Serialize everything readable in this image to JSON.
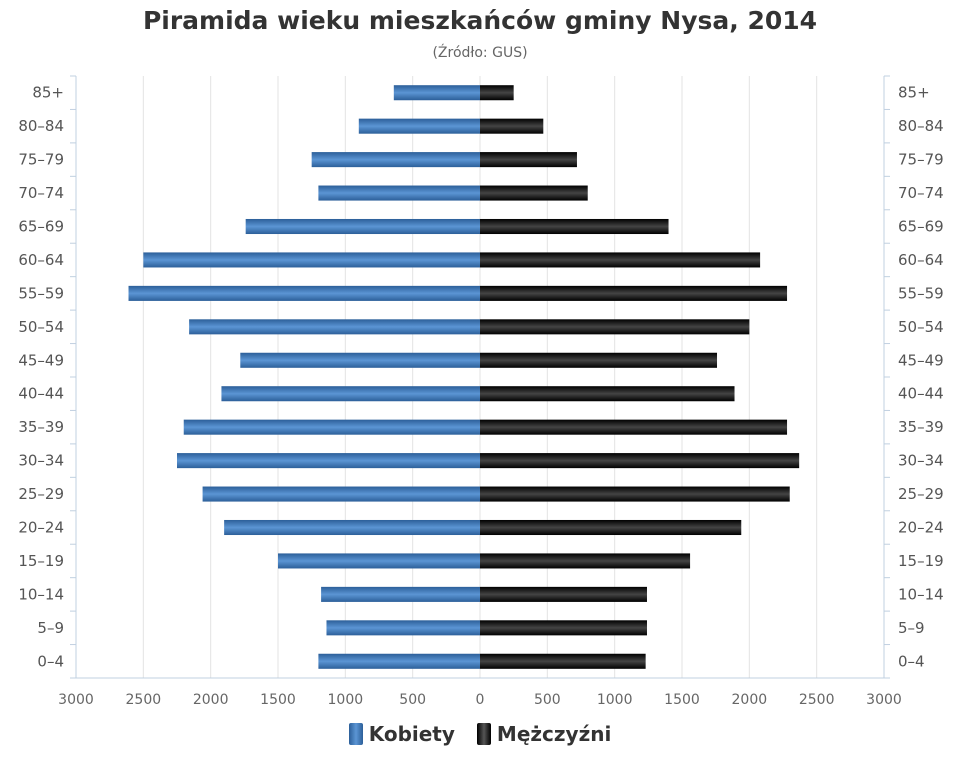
{
  "chart_data": {
    "type": "bar",
    "orientation": "horizontal",
    "layout": "population-pyramid",
    "title": "Piramida wieku mieszkańców gminy Nysa, 2014",
    "subtitle": "(Źródło: GUS)",
    "categories": [
      "85+",
      "80–84",
      "75–79",
      "70–74",
      "65–69",
      "60–64",
      "55–59",
      "50–54",
      "45–49",
      "40–44",
      "35–39",
      "30–34",
      "25–29",
      "20–24",
      "15–19",
      "10–14",
      "5–9",
      "0–4"
    ],
    "series": [
      {
        "name": "Kobiety",
        "color": "#3d78b8",
        "side": "left",
        "values": [
          640,
          900,
          1250,
          1200,
          1740,
          2500,
          2610,
          2160,
          1780,
          1920,
          2200,
          2250,
          2060,
          1900,
          1500,
          1180,
          1140,
          1200
        ]
      },
      {
        "name": "Mężczyźni",
        "color": "#1a1a1a",
        "side": "right",
        "values": [
          250,
          470,
          720,
          800,
          1400,
          2080,
          2280,
          2000,
          1760,
          1890,
          2280,
          2370,
          2300,
          1940,
          1560,
          1240,
          1240,
          1230
        ]
      }
    ],
    "xlim": [
      -3000,
      3000
    ],
    "x_ticks": [
      -3000,
      -2500,
      -2000,
      -1500,
      -1000,
      -500,
      0,
      500,
      1000,
      1500,
      2000,
      2500,
      3000
    ],
    "x_tick_labels": [
      "3000",
      "2500",
      "2000",
      "1500",
      "1000",
      "500",
      "0",
      "500",
      "1000",
      "1500",
      "2000",
      "2500",
      "3000"
    ],
    "grid": true,
    "legend_position": "bottom"
  }
}
